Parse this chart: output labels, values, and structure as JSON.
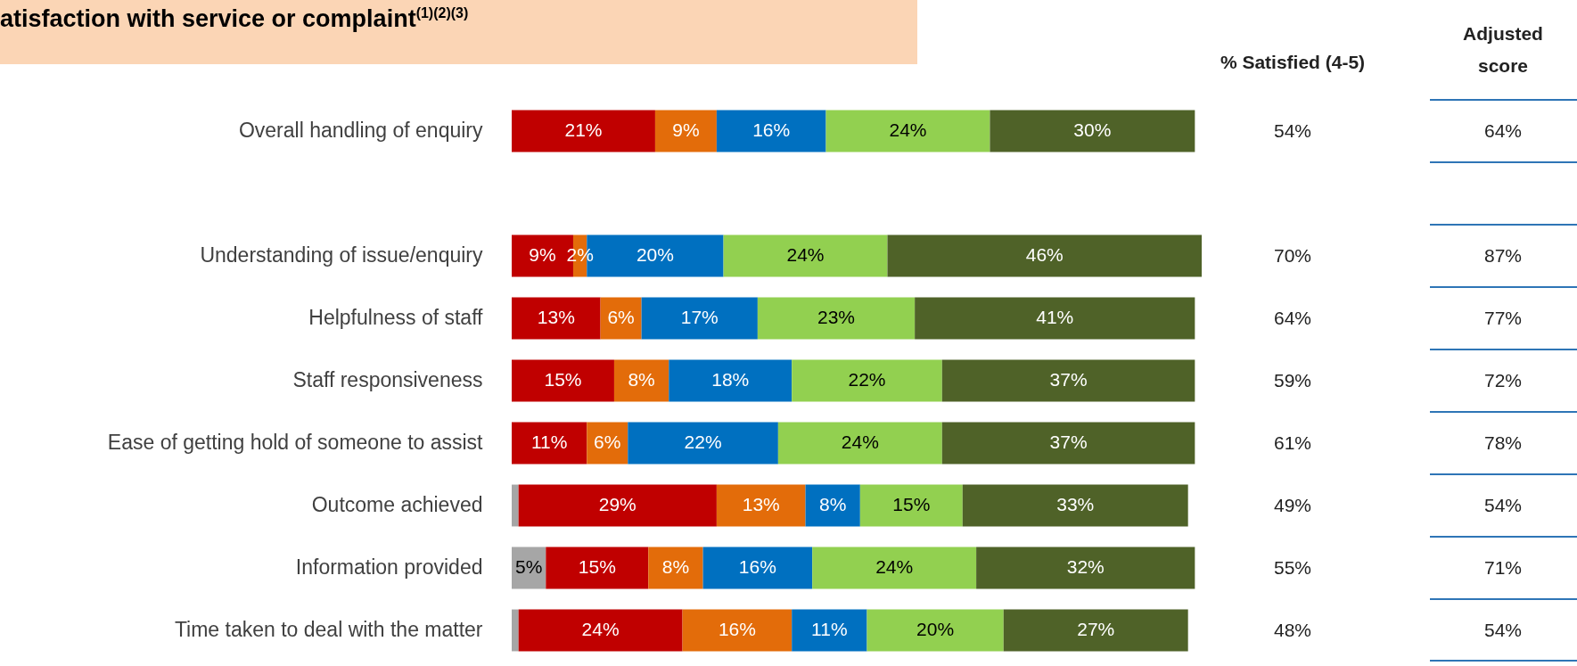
{
  "chart_data": {
    "type": "bar",
    "orientation": "horizontal",
    "stacked": true,
    "title": "atisfaction with service or complaint$^{(1)(2)(3)}$",
    "categories": [
      "Overall handling of enquiry",
      null,
      "Understanding of issue/enquiry",
      "Helpfulness of staff",
      "Staff responsiveness",
      "Ease of getting hold of someone to assist",
      "Outcome achieved",
      "Information provided",
      "Time taken to deal with the matter"
    ],
    "xlim": [
      0,
      101
    ],
    "tick_labels": "y",
    "series": [
      {
        "color": "#a6a6a6",
        "values": [
          null,
          null,
          null,
          null,
          null,
          null,
          1,
          5,
          1
        ],
        "value_labels": [
          null,
          null,
          null,
          null,
          null,
          null,
          null,
          "5%",
          null
        ]
      },
      {
        "color": "#c00000",
        "values": [
          21,
          null,
          9,
          13,
          15,
          11,
          29,
          15,
          24
        ],
        "value_labels": [
          "21%",
          null,
          "9%",
          "13%",
          "15%",
          "11%",
          "29%",
          "15%",
          "24%"
        ]
      },
      {
        "color": "#e36c0a",
        "values": [
          9,
          null,
          2,
          6,
          8,
          6,
          13,
          8,
          16
        ],
        "value_labels": [
          "9%",
          null,
          "2%",
          "6%",
          "8%",
          "6%",
          "13%",
          "8%",
          "16%"
        ]
      },
      {
        "color": "#0070c0",
        "values": [
          16,
          null,
          20,
          17,
          18,
          22,
          8,
          16,
          11
        ],
        "value_labels": [
          "16%",
          null,
          "20%",
          "17%",
          "18%",
          "22%",
          "8%",
          "16%",
          "11%"
        ]
      },
      {
        "color": "#92d050",
        "values": [
          24,
          null,
          24,
          23,
          22,
          24,
          15,
          24,
          20
        ],
        "value_labels": [
          "24%",
          null,
          "24%",
          "23%",
          "22%",
          "24%",
          "15%",
          "24%",
          "20%"
        ]
      },
      {
        "color": "#4f6228",
        "values": [
          30,
          null,
          46,
          41,
          37,
          37,
          33,
          32,
          27
        ],
        "value_labels": [
          "30%",
          null,
          "46%",
          "41%",
          "37%",
          "37%",
          "33%",
          "32%",
          "27%"
        ]
      }
    ],
    "annotations": [
      "% Satisfied (4-5)",
      "54%",
      "70%",
      "64%",
      "59%",
      "61%",
      "49%",
      "55%",
      "48%",
      "Adjusted score",
      "64%",
      "87%",
      "77%",
      "72%",
      "78%",
      "54%",
      "71%",
      "54%"
    ]
  }
}
